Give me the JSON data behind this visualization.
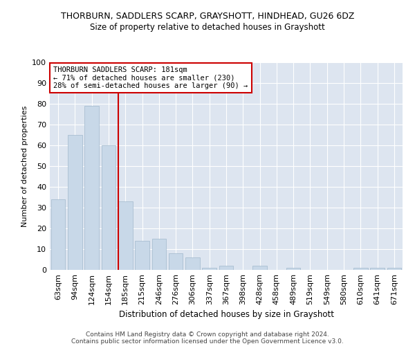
{
  "title": "THORBURN, SADDLERS SCARP, GRAYSHOTT, HINDHEAD, GU26 6DZ",
  "subtitle": "Size of property relative to detached houses in Grayshott",
  "xlabel": "Distribution of detached houses by size in Grayshott",
  "ylabel": "Number of detached properties",
  "categories": [
    "63sqm",
    "94sqm",
    "124sqm",
    "154sqm",
    "185sqm",
    "215sqm",
    "246sqm",
    "276sqm",
    "306sqm",
    "337sqm",
    "367sqm",
    "398sqm",
    "428sqm",
    "458sqm",
    "489sqm",
    "519sqm",
    "549sqm",
    "580sqm",
    "610sqm",
    "641sqm",
    "671sqm"
  ],
  "values": [
    34,
    65,
    79,
    60,
    33,
    14,
    15,
    8,
    6,
    1,
    2,
    0,
    2,
    0,
    1,
    0,
    0,
    0,
    1,
    1,
    1
  ],
  "bar_color": "#c8d8e8",
  "bar_edge_color": "#a0b8cc",
  "vline_x_index": 4,
  "vline_color": "#cc0000",
  "annotation_title": "THORBURN SADDLERS SCARP: 181sqm",
  "annotation_line1": "← 71% of detached houses are smaller (230)",
  "annotation_line2": "28% of semi-detached houses are larger (90) →",
  "annotation_box_color": "#cc0000",
  "background_color": "#dde5f0",
  "ylim": [
    0,
    100
  ],
  "yticks": [
    0,
    10,
    20,
    30,
    40,
    50,
    60,
    70,
    80,
    90,
    100
  ],
  "footer1": "Contains HM Land Registry data © Crown copyright and database right 2024.",
  "footer2": "Contains public sector information licensed under the Open Government Licence v3.0."
}
